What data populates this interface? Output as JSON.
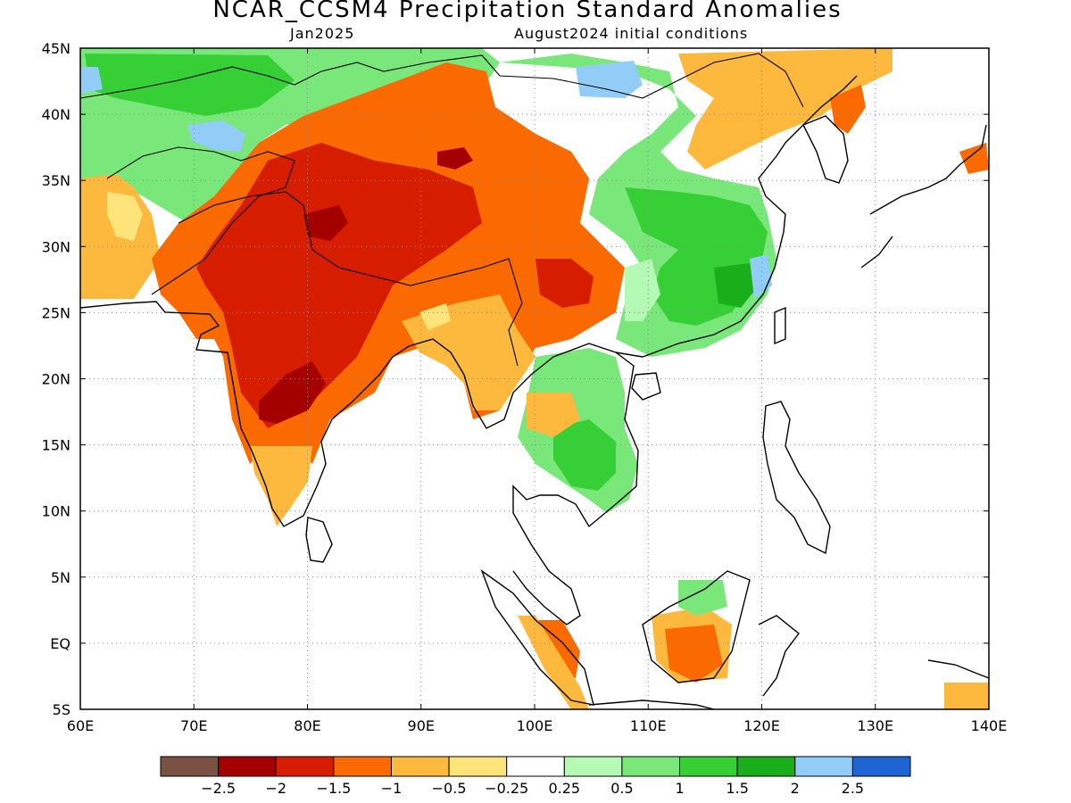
{
  "title": "NCAR_CCSM4 Precipitation Standard Anomalies",
  "valid_month": "Jan2025",
  "initial_conditions": "August2024 initial conditions",
  "map": {
    "lon_range": [
      60,
      140
    ],
    "lat_range": [
      -5,
      45
    ],
    "lon_labels": [
      "60E",
      "70E",
      "80E",
      "90E",
      "100E",
      "110E",
      "120E",
      "130E",
      "140E"
    ],
    "lat_labels": [
      "5S",
      "EQ",
      "5N",
      "10N",
      "15N",
      "20N",
      "25N",
      "30N",
      "35N",
      "40N",
      "45N"
    ],
    "gridlines": "dotted"
  },
  "colorbar": {
    "colors": [
      "#7a5244",
      "#a50000",
      "#d71d00",
      "#fa6a00",
      "#fdb93d",
      "#fee47b",
      "#ffffff",
      "#b4fab4",
      "#7ae77a",
      "#36cf36",
      "#1bae1b",
      "#91cdf6",
      "#1e64d2"
    ],
    "labels": [
      "-2.5",
      "-2",
      "-1.5",
      "-1",
      "-0.5",
      "-0.25",
      "0.25",
      "0.5",
      "1",
      "1.5",
      "2",
      "2.5"
    ]
  },
  "chart_data": {
    "type": "heatmap",
    "title": "NCAR_CCSM4 Precipitation Standard Anomalies",
    "subtitle": [
      "Jan2025",
      "August2024 initial conditions"
    ],
    "xlim": [
      60,
      140
    ],
    "ylim": [
      -5,
      45
    ],
    "color_scale": [
      -2.5,
      -2,
      -1.5,
      -1,
      -0.5,
      -0.25,
      0.25,
      0.5,
      1,
      1.5,
      2,
      2.5
    ],
    "regions": [
      {
        "lon": [
          60,
          100
        ],
        "lat": [
          37,
          45
        ],
        "anomaly": 1
      },
      {
        "lon": [
          60,
          68
        ],
        "lat": [
          26,
          35
        ],
        "anomaly": -0.5
      },
      {
        "lon": [
          70,
          95
        ],
        "lat": [
          15,
          37
        ],
        "anomaly": -1.5
      },
      {
        "lon": [
          75,
          80
        ],
        "lat": [
          17,
          21
        ],
        "anomaly": -2
      },
      {
        "lon": [
          83,
          91
        ],
        "lat": [
          24,
          38
        ],
        "anomaly": -1
      },
      {
        "lon": [
          99,
          108
        ],
        "lat": [
          22,
          30
        ],
        "anomaly": -1
      },
      {
        "lon": [
          107,
          123
        ],
        "lat": [
          21,
          35
        ],
        "anomaly": 1
      },
      {
        "lon": [
          103,
          108
        ],
        "lat": [
          12,
          17
        ],
        "anomaly": 1
      },
      {
        "lon": [
          112,
          117
        ],
        "lat": [
          -3,
          2
        ],
        "anomaly": -1
      },
      {
        "lon": [
          100,
          103
        ],
        "lat": [
          -2,
          2
        ],
        "anomaly": -1
      }
    ]
  }
}
